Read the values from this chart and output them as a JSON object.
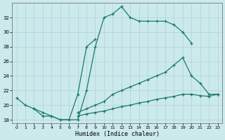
{
  "xlabel": "Humidex (Indice chaleur)",
  "xlim_min": -0.5,
  "xlim_max": 23.5,
  "ylim_min": 17.5,
  "ylim_max": 34.0,
  "xticks": [
    0,
    1,
    2,
    3,
    4,
    5,
    6,
    7,
    8,
    9,
    10,
    11,
    12,
    13,
    14,
    15,
    16,
    17,
    18,
    19,
    20,
    21,
    22,
    23
  ],
  "yticks": [
    18,
    20,
    22,
    24,
    26,
    28,
    30,
    32
  ],
  "bg_color": "#cce9eb",
  "grid_color": "#aad5d8",
  "line_color": "#1a7a6e",
  "lines": [
    {
      "x": [
        0,
        1,
        2,
        3,
        4,
        5,
        6,
        7,
        8,
        9,
        10,
        11,
        12,
        13,
        14,
        15,
        16,
        17,
        18,
        19,
        20
      ],
      "y": [
        21.0,
        20.0,
        19.5,
        19.0,
        18.5,
        18.0,
        18.0,
        18.0,
        22.0,
        28.0,
        32.0,
        32.5,
        33.5,
        32.0,
        31.5,
        31.5,
        31.5,
        31.5,
        31.0,
        30.0,
        28.5
      ],
      "marker": "+"
    },
    {
      "x": [
        2,
        3,
        4,
        5,
        6,
        7,
        8,
        9
      ],
      "y": [
        19.5,
        18.5,
        18.5,
        18.0,
        18.0,
        21.5,
        28.0,
        29.0
      ],
      "marker": "+"
    },
    {
      "x": [
        7,
        8,
        9,
        10,
        11,
        12,
        13,
        14,
        15,
        16,
        17,
        18,
        19,
        20,
        21,
        22,
        23
      ],
      "y": [
        19.0,
        19.5,
        20.0,
        20.5,
        21.5,
        22.0,
        22.5,
        23.0,
        23.5,
        24.0,
        24.5,
        25.5,
        26.5,
        24.0,
        23.0,
        21.5,
        21.5
      ],
      "marker": "+"
    },
    {
      "x": [
        7,
        8,
        9,
        10,
        11,
        12,
        13,
        14,
        15,
        16,
        17,
        18,
        19,
        20,
        21,
        22,
        23
      ],
      "y": [
        18.5,
        18.8,
        19.0,
        19.2,
        19.5,
        19.8,
        20.0,
        20.3,
        20.5,
        20.8,
        21.0,
        21.2,
        21.5,
        21.5,
        21.3,
        21.2,
        21.5
      ],
      "marker": "+"
    }
  ]
}
